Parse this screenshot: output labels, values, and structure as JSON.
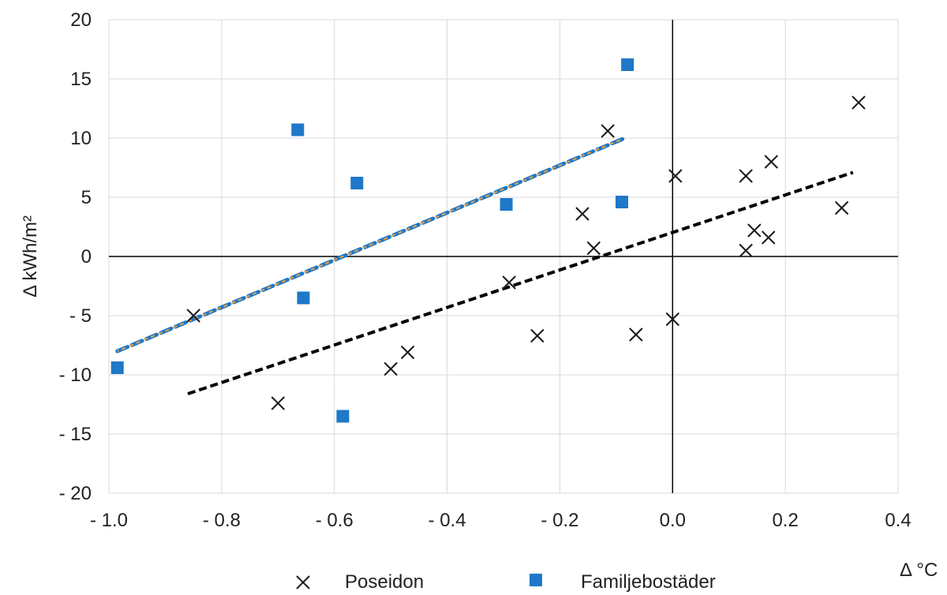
{
  "chart_data": {
    "type": "scatter",
    "xlabel": "Δ °C",
    "ylabel": "Δ kWh/m²",
    "xlim": [
      -1.0,
      0.4
    ],
    "ylim": [
      -20,
      20
    ],
    "grid": true,
    "legend_position": "bottom",
    "xticks": [
      -1.0,
      -0.8,
      -0.6,
      -0.4,
      -0.2,
      0.0,
      0.2,
      0.4
    ],
    "yticks": [
      20,
      15,
      10,
      5,
      0,
      -5,
      -10,
      -15,
      -20
    ],
    "xtick_labels": [
      "- 1.0",
      "- 0.8",
      "- 0.6",
      "- 0.4",
      "- 0.2",
      "0.0",
      "0.2",
      "0.4"
    ],
    "ytick_labels": [
      "20",
      "15",
      "10",
      "5",
      "0",
      "- 5",
      "- 10",
      "- 15",
      "- 20"
    ],
    "series": [
      {
        "name": "Poseidon",
        "marker": "x",
        "color": "#1a1a1a",
        "points": [
          [
            -0.85,
            -5.0
          ],
          [
            -0.7,
            -12.4
          ],
          [
            -0.5,
            -9.5
          ],
          [
            -0.47,
            -8.1
          ],
          [
            -0.29,
            -2.2
          ],
          [
            -0.24,
            -6.7
          ],
          [
            -0.16,
            3.6
          ],
          [
            -0.14,
            0.7
          ],
          [
            -0.115,
            10.6
          ],
          [
            -0.065,
            -6.6
          ],
          [
            0.0,
            -5.3
          ],
          [
            0.005,
            6.8
          ],
          [
            0.13,
            6.8
          ],
          [
            0.13,
            0.5
          ],
          [
            0.145,
            2.2
          ],
          [
            0.17,
            1.6
          ],
          [
            0.175,
            8.0
          ],
          [
            0.3,
            4.1
          ],
          [
            0.33,
            13.0
          ]
        ],
        "trendline": {
          "x": [
            -0.86,
            0.32
          ],
          "y": [
            -11.6,
            7.1
          ],
          "color": "#000000"
        }
      },
      {
        "name": "Familjebostäder",
        "marker": "square",
        "color": "#1f78c8",
        "points": [
          [
            -0.985,
            -9.4
          ],
          [
            -0.665,
            10.7
          ],
          [
            -0.655,
            -3.5
          ],
          [
            -0.585,
            -13.5
          ],
          [
            -0.56,
            6.2
          ],
          [
            -0.295,
            4.4
          ],
          [
            -0.09,
            4.6
          ],
          [
            -0.08,
            16.2
          ]
        ],
        "trendline": {
          "x": [
            -0.985,
            -0.085
          ],
          "y": [
            -8.0,
            10.0
          ],
          "color": "#1f78c8",
          "accent": "#f0a040"
        }
      }
    ]
  }
}
